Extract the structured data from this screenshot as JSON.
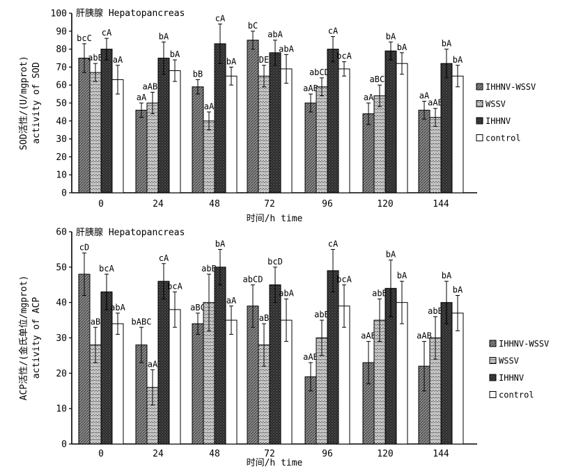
{
  "chart_data": [
    {
      "type": "bar",
      "title": "肝胰腺 Hepatopancreas",
      "xlabel": "时间/h time",
      "ylabel_line1": "SOD活性/(U/mgprot)",
      "ylabel_line2": "activity of SOD",
      "ylim": [
        0,
        100
      ],
      "yticks": [
        0,
        10,
        20,
        30,
        40,
        50,
        60,
        70,
        80,
        90,
        100
      ],
      "categories": [
        "0",
        "24",
        "48",
        "72",
        "96",
        "120",
        "144"
      ],
      "series": [
        {
          "name": "IHHNV-WSSV",
          "pattern": "p-grey",
          "values": [
            75,
            46,
            59,
            85,
            50,
            44,
            46
          ],
          "errors": [
            8,
            4,
            4,
            5,
            5,
            6,
            5
          ],
          "labels": [
            "bcC",
            "aA",
            "bB",
            "bC",
            "aAB",
            "aA",
            "aA"
          ]
        },
        {
          "name": "WSSV",
          "pattern": "p-wave",
          "values": [
            67,
            50,
            40,
            65,
            59,
            54,
            42
          ],
          "errors": [
            5,
            6,
            5,
            6,
            5,
            6,
            5
          ],
          "labels": [
            "abB",
            "aABC",
            "aA",
            "DE",
            "abCDE",
            "aBCD",
            "aAB"
          ]
        },
        {
          "name": "IHHNV",
          "pattern": "p-dark",
          "values": [
            80,
            75,
            83,
            78,
            80,
            79,
            72
          ],
          "errors": [
            6,
            9,
            11,
            7,
            7,
            5,
            8
          ],
          "labels": [
            "cA",
            "bA",
            "cA",
            "abA",
            "cA",
            "bA",
            "bA"
          ]
        },
        {
          "name": "control",
          "pattern": "p-white",
          "values": [
            63,
            68,
            65,
            69,
            69,
            72,
            65
          ],
          "errors": [
            8,
            6,
            5,
            8,
            4,
            6,
            6
          ],
          "labels": [
            "aA",
            "bA",
            "bA",
            "abA",
            "bcA",
            "bA",
            "bA"
          ]
        }
      ],
      "legend_position": "right"
    },
    {
      "type": "bar",
      "title": "肝胰腺 Hepatopancreas",
      "xlabel": "时间/h time",
      "ylabel_line1": "ACP活性/(金氏单位/mgprot)",
      "ylabel_line2": "activity of ACP",
      "ylim": [
        0,
        60
      ],
      "yticks": [
        0,
        10,
        20,
        30,
        40,
        50,
        60
      ],
      "categories": [
        "0",
        "24",
        "48",
        "72",
        "96",
        "120",
        "144"
      ],
      "series": [
        {
          "name": "IHHNV-WSSV",
          "pattern": "p-grey",
          "values": [
            48,
            28,
            34,
            39,
            19,
            23,
            22
          ],
          "errors": [
            6,
            5,
            3,
            6,
            4,
            6,
            7
          ],
          "labels": [
            "cD",
            "bABC",
            "aBC",
            "abCD",
            "aAB",
            "aAB",
            "aAB"
          ]
        },
        {
          "name": "WSSV",
          "pattern": "p-wave",
          "values": [
            28,
            16,
            40,
            28,
            30,
            35,
            30
          ],
          "errors": [
            5,
            5,
            8,
            6,
            5,
            6,
            6
          ],
          "labels": [
            "aB",
            "aA",
            "abB",
            "aB",
            "abB",
            "abB",
            "abB"
          ]
        },
        {
          "name": "IHHNV",
          "pattern": "p-dark",
          "values": [
            43,
            46,
            50,
            45,
            49,
            44,
            40
          ],
          "errors": [
            5,
            5,
            5,
            5,
            6,
            8,
            6
          ],
          "labels": [
            "bcA",
            "cA",
            "bA",
            "bcD",
            "cA",
            "bA",
            "bA"
          ]
        },
        {
          "name": "control",
          "pattern": "p-white",
          "values": [
            34,
            38,
            35,
            35,
            39,
            40,
            37
          ],
          "errors": [
            3,
            5,
            4,
            6,
            6,
            6,
            5
          ],
          "labels": [
            "abA",
            "bcA",
            "aA",
            "abA",
            "bcA",
            "bA",
            "bA"
          ]
        }
      ],
      "legend_position": "right"
    }
  ]
}
